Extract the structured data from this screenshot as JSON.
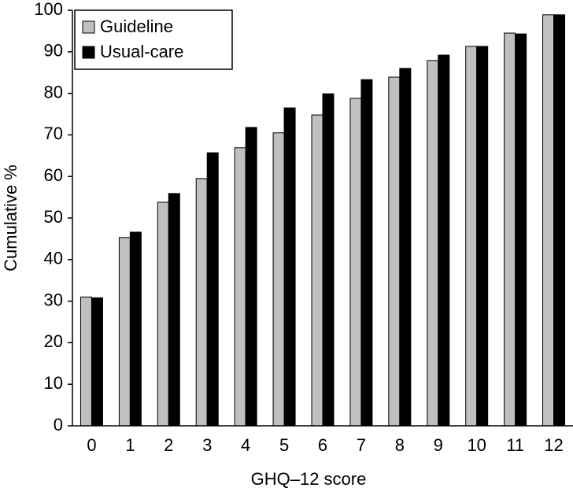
{
  "chart_data": {
    "type": "bar",
    "x_label": "GHQ–12 score",
    "y_label": "Cumulative %",
    "categories": [
      "0",
      "1",
      "2",
      "3",
      "4",
      "5",
      "6",
      "7",
      "8",
      "9",
      "10",
      "11",
      "12"
    ],
    "series": [
      {
        "name": "Guideline",
        "color": "#c0c0c0",
        "values": [
          31,
          45.3,
          53.8,
          59.5,
          66.9,
          70.5,
          74.8,
          78.8,
          83.9,
          87.9,
          91.3,
          94.5,
          98.9
        ]
      },
      {
        "name": "Usual-care",
        "color": "#000000",
        "values": [
          30.8,
          46.6,
          55.9,
          65.7,
          71.8,
          76.5,
          79.9,
          83.3,
          86,
          89.2,
          91.3,
          94.3,
          98.9
        ]
      }
    ],
    "ylim": [
      0,
      100
    ],
    "yticks": [
      0,
      10,
      20,
      30,
      40,
      50,
      60,
      70,
      80,
      90,
      100
    ],
    "legend": "top-left"
  }
}
